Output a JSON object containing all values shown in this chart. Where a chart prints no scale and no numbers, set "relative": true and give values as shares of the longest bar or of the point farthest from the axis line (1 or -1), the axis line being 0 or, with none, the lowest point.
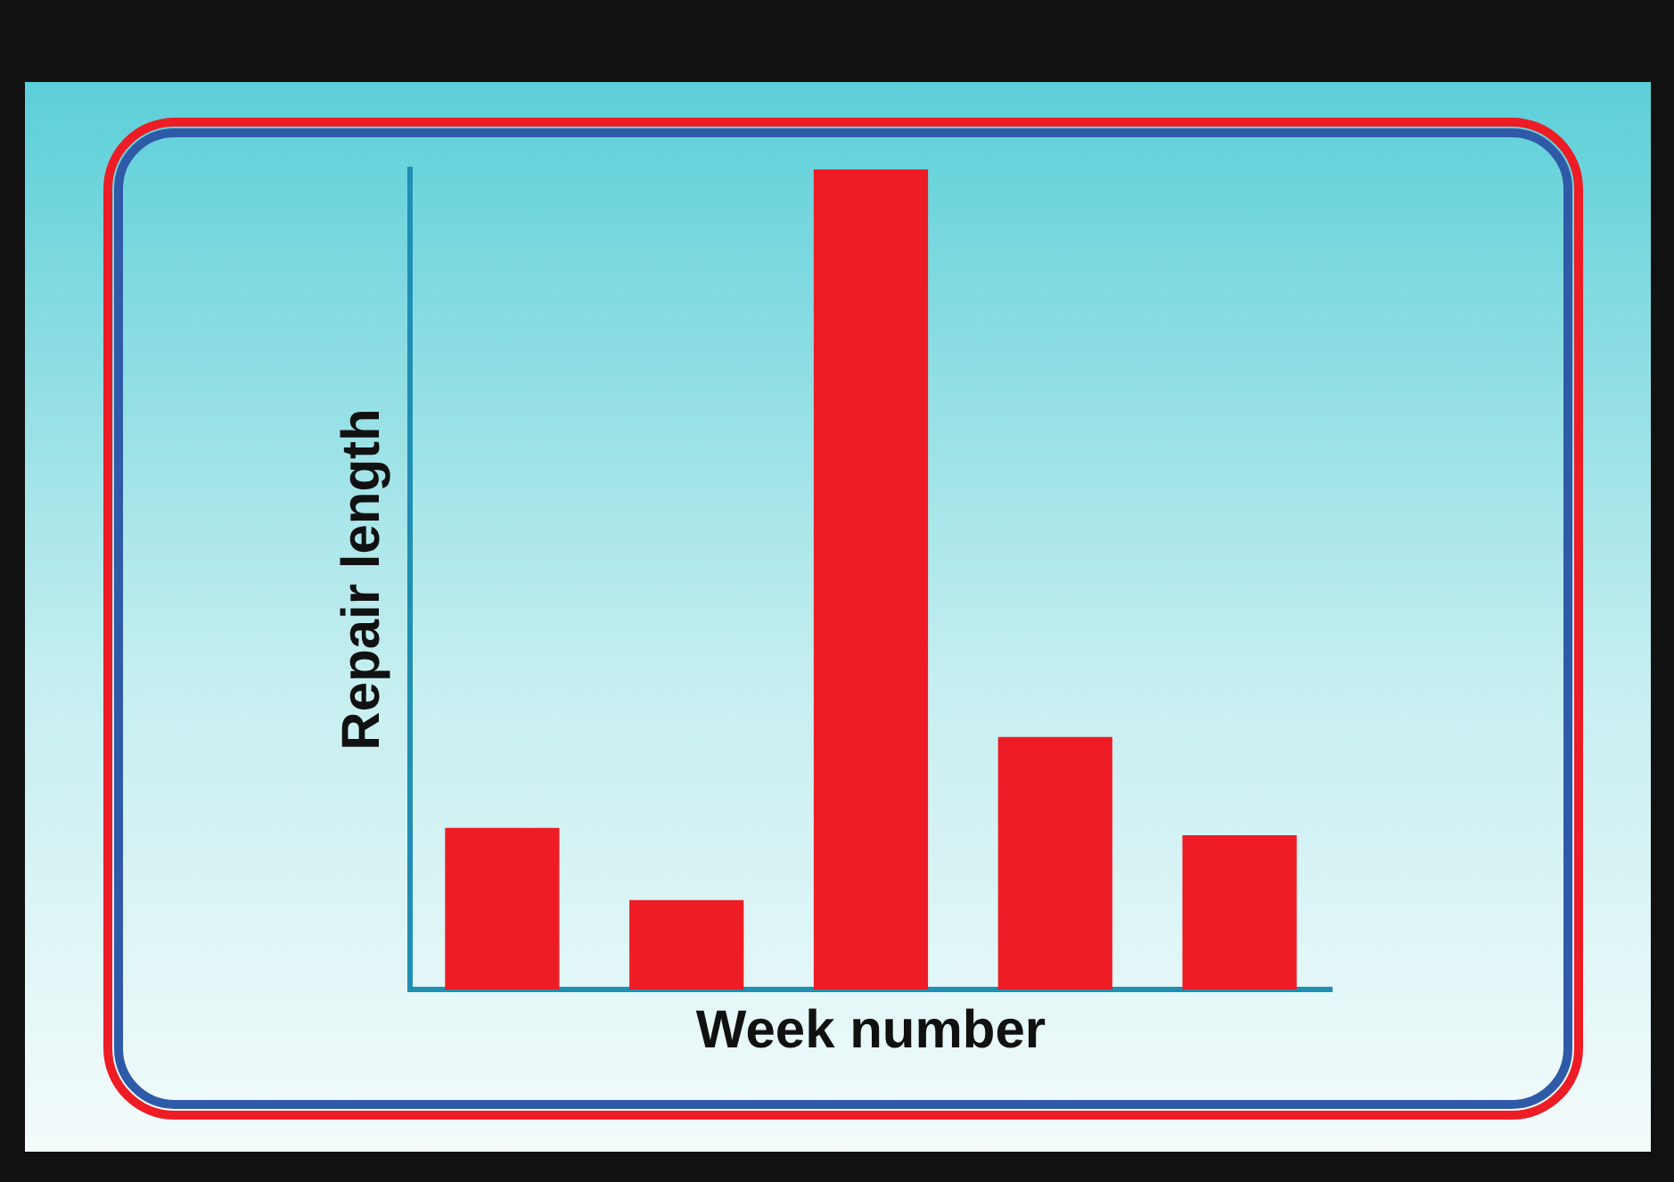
{
  "chart_data": {
    "type": "bar",
    "xlabel": "Week number",
    "ylabel": "Repair length",
    "relative": true,
    "categories": [
      null,
      null,
      null,
      null,
      null
    ],
    "values": [
      0.197,
      0.109,
      1,
      0.308,
      0.188
    ],
    "color": "#ee1c25",
    "grid": false,
    "legend": false
  }
}
